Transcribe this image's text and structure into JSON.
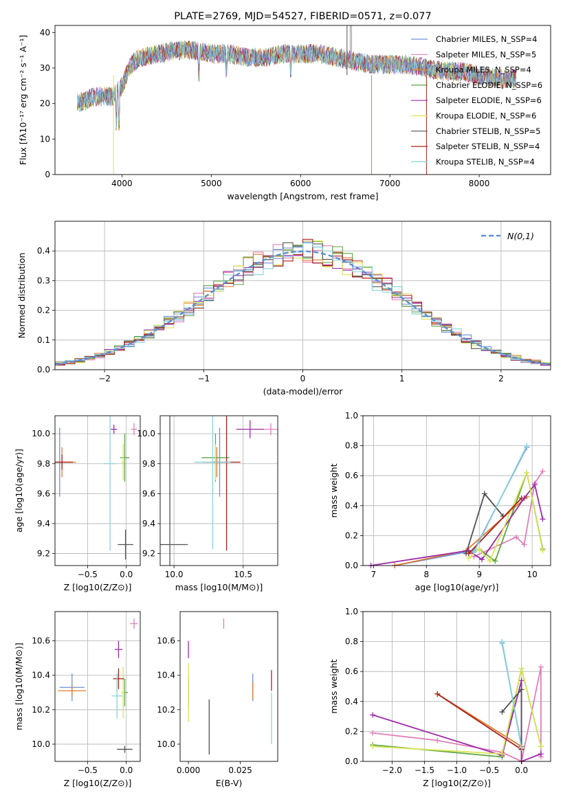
{
  "colors": {
    "Chabrier MILES": "#6a8fd9",
    "Salpeter MILES": "#e07fb7",
    "Kroupa MILES": "#e07a2a",
    "Chabrier ELODIE": "#5aa640",
    "Salpeter ELODIE": "#9c2aa8",
    "Kroupa ELODIE": "#d9e454",
    "Chabrier STELIB": "#505050",
    "Salpeter STELIB": "#a8201a",
    "Kroupa STELIB": "#86d2dc",
    "normal_curve": "#5b8fd6",
    "grid": "#b0b0b0"
  },
  "chart_data": [
    {
      "id": "spectrum",
      "type": "line",
      "title": "PLATE=2769, MJD=54527, FIBERID=0571, z=0.077",
      "xlabel": "wavelength [Angstrom, rest frame]",
      "ylabel": "Flux [fλ10⁻¹⁷ erg cm⁻² s⁻¹ A⁻¹]",
      "xlim": [
        3250,
        8800
      ],
      "ylim": [
        0,
        42
      ],
      "xticks": [
        4000,
        5000,
        6000,
        7000,
        8000
      ],
      "yticks": [
        0,
        10,
        20,
        30,
        40
      ],
      "grid": false,
      "legend_position": "top-right",
      "legend": [
        "Chabrier MILES, N_SSP=4",
        "Salpeter MILES, N_SSP=5",
        "Kroupa MILES, N_SSP=4",
        "Chabrier ELODIE, N_SSP=6",
        "Salpeter ELODIE, N_SSP=6",
        "Kroupa ELODIE, N_SSP=6",
        "Chabrier STELIB, N_SSP=5",
        "Salpeter STELIB, N_SSP=4",
        "Kroupa STELIB, N_SSP=4"
      ],
      "continuum": [
        [
          3500,
          20
        ],
        [
          3700,
          22
        ],
        [
          3900,
          22
        ],
        [
          4000,
          25
        ],
        [
          4100,
          31
        ],
        [
          4200,
          33
        ],
        [
          4400,
          34
        ],
        [
          4600,
          35
        ],
        [
          4800,
          35
        ],
        [
          5000,
          34
        ],
        [
          5200,
          34
        ],
        [
          5400,
          33
        ],
        [
          5600,
          33
        ],
        [
          5800,
          34
        ],
        [
          6000,
          34
        ],
        [
          6200,
          34
        ],
        [
          6400,
          33
        ],
        [
          6600,
          32
        ],
        [
          6800,
          31
        ],
        [
          7000,
          31
        ],
        [
          7200,
          31
        ],
        [
          7400,
          30
        ],
        [
          7600,
          29
        ],
        [
          7800,
          29
        ],
        [
          8000,
          28
        ],
        [
          8200,
          27
        ],
        [
          8400,
          27
        ]
      ]
    },
    {
      "id": "residuals",
      "type": "histogram",
      "xlabel": "(data-model)/error",
      "ylabel": "Normed distribution",
      "xlim": [
        -2.5,
        2.5
      ],
      "ylim": [
        0,
        0.5
      ],
      "xticks": [
        -2,
        -1,
        0,
        1,
        2
      ],
      "yticks": [
        0.0,
        0.1,
        0.2,
        0.3,
        0.4
      ],
      "grid": true,
      "legend_position": "top-right",
      "legend": [
        "N(0,1)"
      ],
      "bin_width": 0.1
    },
    {
      "id": "age_vs_Z",
      "type": "errorbar",
      "xlabel": "Z [log10(Z/Z⊙)]",
      "ylabel": "age  [log10(age/yr)]",
      "xlim": [
        -0.92,
        0.18
      ],
      "ylim": [
        9.12,
        10.12
      ],
      "xticks": [
        -0.5,
        0.0
      ],
      "yticks": [
        9.2,
        9.4,
        9.6,
        9.8,
        10.0
      ],
      "grid": true,
      "points": [
        {
          "model": "Chabrier MILES",
          "x": -0.86,
          "y": 9.81,
          "xerr": 0.07,
          "yerr": 0.23
        },
        {
          "model": "Salpeter MILES",
          "x": 0.1,
          "y": 10.03,
          "xerr": 0.04,
          "yerr": 0.04
        },
        {
          "model": "Kroupa MILES",
          "x": -0.83,
          "y": 9.81,
          "xerr": 0.18,
          "yerr": 0.1
        },
        {
          "model": "Chabrier ELODIE",
          "x": -0.02,
          "y": 9.84,
          "xerr": 0.06,
          "yerr": 0.16
        },
        {
          "model": "Salpeter ELODIE",
          "x": -0.16,
          "y": 10.03,
          "xerr": 0.04,
          "yerr": 0.03
        },
        {
          "model": "Kroupa ELODIE",
          "x": -0.04,
          "y": 9.81,
          "xerr": 0.02,
          "yerr": 0.12
        },
        {
          "model": "Chabrier STELIB",
          "x": -0.01,
          "y": 9.26,
          "xerr": 0.1,
          "yerr": 0.1
        },
        {
          "model": "Salpeter STELIB",
          "x": -0.83,
          "y": 9.81,
          "xerr": 0.14,
          "yerr": 0.05
        },
        {
          "model": "Kroupa STELIB",
          "x": -0.21,
          "y": 9.8,
          "xerr": 0.08,
          "yerr": 0.58
        }
      ]
    },
    {
      "id": "age_vs_mass",
      "type": "errorbar",
      "xlabel": "mass [log10(M/M⊙)]",
      "ylabel": "",
      "xlim": [
        9.9,
        10.75
      ],
      "ylim": [
        9.12,
        10.12
      ],
      "xticks": [
        10.0,
        10.5
      ],
      "yticks": [
        9.2,
        9.4,
        9.6,
        9.8,
        10.0
      ],
      "grid": true,
      "points": [
        {
          "model": "Chabrier MILES",
          "x": 10.33,
          "y": 9.81,
          "xerr": 0.02,
          "yerr": 0.23
        },
        {
          "model": "Salpeter MILES",
          "x": 10.7,
          "y": 10.03,
          "xerr": 0.08,
          "yerr": 0.04
        },
        {
          "model": "Kroupa MILES",
          "x": 10.31,
          "y": 9.81,
          "xerr": 0.1,
          "yerr": 0.1
        },
        {
          "model": "Chabrier ELODIE",
          "x": 10.3,
          "y": 9.84,
          "xerr": 0.1,
          "yerr": 0.16
        },
        {
          "model": "Salpeter ELODIE",
          "x": 10.55,
          "y": 10.03,
          "xerr": 0.1,
          "yerr": 0.06
        },
        {
          "model": "Kroupa ELODIE",
          "x": 10.3,
          "y": 9.81,
          "xerr": 0.04,
          "yerr": 0.12
        },
        {
          "model": "Chabrier STELIB",
          "x": 9.97,
          "y": 9.26,
          "xerr": 0.13,
          "yerr": 0.87
        },
        {
          "model": "Salpeter STELIB",
          "x": 10.38,
          "y": 9.81,
          "xerr": 0.1,
          "yerr": 0.59
        },
        {
          "model": "Kroupa STELIB",
          "x": 10.28,
          "y": 9.81,
          "xerr": 0.13,
          "yerr": 0.58
        }
      ]
    },
    {
      "id": "weight_vs_age",
      "type": "line",
      "xlabel": "age  [log10(age/yr)]",
      "ylabel": "mass weight",
      "xlim": [
        6.8,
        10.35
      ],
      "ylim": [
        0.0,
        1.0
      ],
      "xticks": [
        7,
        8,
        9,
        10
      ],
      "yticks": [
        0.0,
        0.2,
        0.4,
        0.6,
        0.8,
        1.0
      ],
      "grid": true,
      "series": [
        {
          "model": "Chabrier MILES",
          "points": [
            [
              7.4,
              0.0
            ],
            [
              8.9,
              0.1
            ],
            [
              9.9,
              0.79
            ]
          ]
        },
        {
          "model": "Salpeter MILES",
          "points": [
            [
              8.9,
              0.06
            ],
            [
              9.7,
              0.19
            ],
            [
              9.85,
              0.14
            ],
            [
              10.05,
              0.55
            ],
            [
              10.2,
              0.63
            ]
          ]
        },
        {
          "model": "Kroupa MILES",
          "points": [
            [
              7.4,
              0.0
            ],
            [
              8.75,
              0.1
            ],
            [
              9.9,
              0.46
            ]
          ]
        },
        {
          "model": "Chabrier ELODIE",
          "points": [
            [
              9.0,
              0.11
            ],
            [
              9.3,
              0.03
            ],
            [
              9.9,
              0.62
            ],
            [
              10.2,
              0.11
            ]
          ]
        },
        {
          "model": "Salpeter ELODIE",
          "points": [
            [
              6.95,
              0.0
            ],
            [
              8.8,
              0.1
            ],
            [
              9.05,
              0.04
            ],
            [
              9.85,
              0.45
            ],
            [
              10.05,
              0.54
            ],
            [
              10.2,
              0.31
            ]
          ]
        },
        {
          "model": "Kroupa ELODIE",
          "points": [
            [
              8.8,
              0.05
            ],
            [
              9.0,
              0.11
            ],
            [
              9.2,
              0.03
            ],
            [
              9.9,
              0.62
            ],
            [
              10.2,
              0.1
            ]
          ]
        },
        {
          "model": "Chabrier STELIB",
          "points": [
            [
              8.75,
              0.08
            ],
            [
              9.1,
              0.48
            ],
            [
              9.45,
              0.33
            ]
          ]
        },
        {
          "model": "Salpeter STELIB",
          "points": [
            [
              8.8,
              0.08
            ],
            [
              9.8,
              0.45
            ]
          ]
        },
        {
          "model": "Kroupa STELIB",
          "points": [
            [
              8.9,
              0.09
            ],
            [
              9.9,
              0.8
            ]
          ]
        }
      ]
    },
    {
      "id": "mass_vs_Z",
      "type": "errorbar",
      "xlabel": "Z [log10(Z/Z⊙)]",
      "ylabel": "mass [log10(M/M⊙)]",
      "xlim": [
        -0.92,
        0.18
      ],
      "ylim": [
        9.9,
        10.77
      ],
      "xticks": [
        -0.5,
        0.0
      ],
      "yticks": [
        10.0,
        10.2,
        10.4,
        10.6
      ],
      "grid": true,
      "points": [
        {
          "model": "Chabrier MILES",
          "x": -0.7,
          "y": 10.33,
          "xerr": 0.16,
          "yerr": 0.08
        },
        {
          "model": "Salpeter MILES",
          "x": 0.1,
          "y": 10.7,
          "xerr": 0.05,
          "yerr": 0.03
        },
        {
          "model": "Kroupa MILES",
          "x": -0.7,
          "y": 10.31,
          "xerr": 0.18,
          "yerr": 0.03
        },
        {
          "model": "Chabrier ELODIE",
          "x": -0.02,
          "y": 10.3,
          "xerr": 0.04,
          "yerr": 0.08
        },
        {
          "model": "Salpeter ELODIE",
          "x": -0.1,
          "y": 10.55,
          "xerr": 0.05,
          "yerr": 0.05
        },
        {
          "model": "Kroupa ELODIE",
          "x": -0.04,
          "y": 10.3,
          "xerr": 0.02,
          "yerr": 0.15
        },
        {
          "model": "Chabrier STELIB",
          "x": -0.02,
          "y": 9.97,
          "xerr": 0.1,
          "yerr": 0.02
        },
        {
          "model": "Salpeter STELIB",
          "x": -0.1,
          "y": 10.38,
          "xerr": 0.07,
          "yerr": 0.06
        },
        {
          "model": "Kroupa STELIB",
          "x": -0.12,
          "y": 10.28,
          "xerr": 0.07,
          "yerr": 0.13
        }
      ]
    },
    {
      "id": "mass_vs_ebv",
      "type": "errorbar",
      "xlabel": "E(B-V)",
      "ylabel": "",
      "xlim": [
        -0.004,
        0.043
      ],
      "ylim": [
        9.9,
        10.77
      ],
      "xticks": [
        0.0,
        0.025
      ],
      "yticks": [
        10.0,
        10.2,
        10.4,
        10.6
      ],
      "grid": false,
      "points": [
        {
          "model": "Chabrier MILES",
          "x": 0.031,
          "y": 10.33,
          "yerr": 0.08
        },
        {
          "model": "Salpeter MILES",
          "x": 0.017,
          "y": 10.7,
          "yerr": 0.03
        },
        {
          "model": "Kroupa MILES",
          "x": 0.031,
          "y": 10.31,
          "yerr": 0.05
        },
        {
          "model": "Chabrier ELODIE",
          "x": 0.0,
          "y": 10.3,
          "yerr": 0.08
        },
        {
          "model": "Salpeter ELODIE",
          "x": 0.0,
          "y": 10.55,
          "yerr": 0.05
        },
        {
          "model": "Kroupa ELODIE",
          "x": 0.0,
          "y": 10.3,
          "yerr": 0.17
        },
        {
          "model": "Chabrier STELIB",
          "x": 0.01,
          "y": 10.1,
          "yerr": 0.16
        },
        {
          "model": "Salpeter STELIB",
          "x": 0.04,
          "y": 10.37,
          "yerr": 0.06
        },
        {
          "model": "Kroupa STELIB",
          "x": 0.04,
          "y": 10.15,
          "yerr": 0.15
        }
      ]
    },
    {
      "id": "weight_vs_Z",
      "type": "line",
      "xlabel": "Z [log10(Z/Z⊙)]",
      "ylabel": "mass weight",
      "xlim": [
        -2.45,
        0.45
      ],
      "ylim": [
        0.0,
        1.0
      ],
      "xticks": [
        -2.0,
        -1.5,
        -1.0,
        -0.5,
        0.0
      ],
      "yticks": [
        0.0,
        0.2,
        0.4,
        0.6,
        0.8,
        1.0
      ],
      "grid": true,
      "series": [
        {
          "model": "Chabrier MILES",
          "points": [
            [
              -0.3,
              0.79
            ],
            [
              0.0,
              0.1
            ],
            [
              0.0,
              0.0
            ]
          ]
        },
        {
          "model": "Salpeter MILES",
          "points": [
            [
              -2.3,
              0.19
            ],
            [
              -1.3,
              0.14
            ],
            [
              -0.3,
              0.06
            ],
            [
              0.0,
              0.0
            ],
            [
              0.3,
              0.63
            ],
            [
              0.3,
              0.03
            ]
          ]
        },
        {
          "model": "Kroupa MILES",
          "points": [
            [
              -1.3,
              0.45
            ],
            [
              0.0,
              0.1
            ],
            [
              0.0,
              0.0
            ]
          ]
        },
        {
          "model": "Chabrier ELODIE",
          "points": [
            [
              -2.3,
              0.11
            ],
            [
              -0.3,
              0.03
            ],
            [
              0.0,
              0.62
            ],
            [
              0.3,
              0.1
            ]
          ]
        },
        {
          "model": "Salpeter ELODIE",
          "points": [
            [
              -2.3,
              0.31
            ],
            [
              -0.3,
              0.04
            ],
            [
              0.0,
              0.54
            ],
            [
              0.0,
              0.0
            ],
            [
              0.3,
              0.05
            ]
          ]
        },
        {
          "model": "Kroupa ELODIE",
          "points": [
            [
              -2.3,
              0.1
            ],
            [
              -0.3,
              0.05
            ],
            [
              0.0,
              0.62
            ],
            [
              0.3,
              0.1
            ]
          ]
        },
        {
          "model": "Chabrier STELIB",
          "points": [
            [
              -0.3,
              0.33
            ],
            [
              0.0,
              0.48
            ],
            [
              0.0,
              0.08
            ]
          ]
        },
        {
          "model": "Salpeter STELIB",
          "points": [
            [
              -1.3,
              0.45
            ],
            [
              0.0,
              0.08
            ]
          ]
        },
        {
          "model": "Kroupa STELIB",
          "points": [
            [
              -0.3,
              0.8
            ],
            [
              0.0,
              0.09
            ]
          ]
        }
      ]
    }
  ]
}
